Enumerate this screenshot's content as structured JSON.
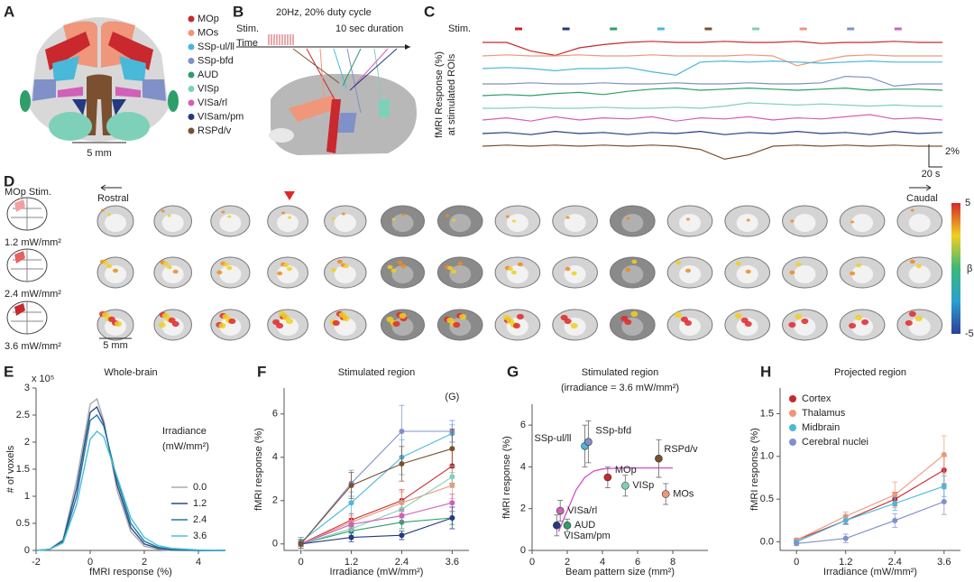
{
  "panel_labels": [
    "A",
    "B",
    "C",
    "D",
    "E",
    "F",
    "G",
    "H"
  ],
  "panel_a": {
    "legend": [
      {
        "name": "MOp",
        "color": "#c8282e"
      },
      {
        "name": "MOs",
        "color": "#f0967a"
      },
      {
        "name": "SSp-ul/ll",
        "color": "#4ab8d8"
      },
      {
        "name": "SSp-bfd",
        "color": "#8090c8"
      },
      {
        "name": "AUD",
        "color": "#2e9e6a"
      },
      {
        "name": "VISp",
        "color": "#7fd0b8"
      },
      {
        "name": "VISa/rl",
        "color": "#d060b8"
      },
      {
        "name": "VISam/pm",
        "color": "#233a80"
      },
      {
        "name": "RSPd/v",
        "color": "#7a5030"
      }
    ],
    "scale": "5 mm"
  },
  "panel_b": {
    "protocol": "20Hz, 20% duty cycle",
    "stim": "Stim.",
    "duration": "10 sec duration",
    "time": "Time"
  },
  "panel_c": {
    "stim": "Stim.",
    "ylabel": [
      "fMRI Response (%)",
      "at stimulated ROIs"
    ],
    "scale_y": "2%",
    "scale_x": "20 s",
    "stim_colors": [
      "#c8282e",
      "#233a80",
      "#2e9e6a",
      "#4ab8d8",
      "#7a5030",
      "#7fd0b8",
      "#f0967a",
      "#8090c8",
      "#d060b8"
    ],
    "series": [
      {
        "color": "#c8282e",
        "values": [
          0,
          0,
          -0.8,
          -1.2,
          -0.5,
          -0.2,
          0,
          0.1,
          0,
          0,
          0.1,
          0,
          0,
          0.1,
          -0.1,
          0,
          0,
          0.1,
          0,
          0
        ]
      },
      {
        "color": "#f0967a",
        "values": [
          0,
          0.1,
          0,
          0,
          0.1,
          0,
          0,
          0.1,
          0,
          0,
          0,
          0.1,
          0,
          -0.9,
          -0.4,
          0,
          0.1,
          0,
          0,
          0
        ]
      },
      {
        "color": "#4ab8d8",
        "values": [
          0,
          0.1,
          0,
          -0.2,
          0,
          0,
          0.1,
          -0.3,
          -0.6,
          0.6,
          0.7,
          0.6,
          0.7,
          0.6,
          0.5,
          0.6,
          0.7,
          0.6,
          0.6,
          0.6
        ]
      },
      {
        "color": "#8090c8",
        "values": [
          0,
          0,
          0.1,
          0,
          0,
          0.1,
          0,
          0,
          0.1,
          0,
          0,
          0.1,
          0,
          0,
          0.1,
          0.7,
          0.6,
          -0.2,
          0,
          0
        ]
      },
      {
        "color": "#2e9e6a",
        "values": [
          0,
          0.1,
          0,
          0.2,
          0.3,
          0.1,
          0.4,
          0.6,
          0.7,
          0.5,
          0.6,
          0.7,
          0.6,
          0.5,
          0.6,
          0.7,
          0.5,
          0.6,
          0.6,
          0.5
        ]
      },
      {
        "color": "#7fd0b8",
        "values": [
          0,
          0,
          0.1,
          0,
          0,
          0.1,
          0,
          0,
          0.1,
          0,
          0.2,
          0.5,
          0.4,
          0.3,
          0.4,
          0.3,
          0.2,
          0.3,
          0.2,
          0.2
        ]
      },
      {
        "color": "#d060b8",
        "values": [
          0,
          0.2,
          -0.1,
          0.3,
          0,
          0.2,
          0.1,
          0.3,
          -0.1,
          0.2,
          0.1,
          0.3,
          0,
          0.2,
          0.1,
          0.3,
          0.5,
          0.1,
          0.2,
          0
        ]
      },
      {
        "color": "#233a80",
        "values": [
          0,
          0.1,
          -0.1,
          0.2,
          0,
          0.1,
          -0.1,
          0.1,
          0,
          0.2,
          -0.1,
          0.1,
          0,
          0.2,
          0,
          0.1,
          -0.1,
          0.2,
          0,
          0.1
        ]
      },
      {
        "color": "#7a5030",
        "values": [
          0,
          0.1,
          0,
          0.1,
          0,
          0.1,
          0,
          0.1,
          0,
          -0.3,
          -1.2,
          -0.8,
          0,
          0.1,
          0,
          0.1,
          0,
          0.1,
          0,
          0
        ]
      }
    ]
  },
  "panel_d": {
    "title": "MOp Stim.",
    "rostral": "Rostral",
    "caudal": "Caudal",
    "rows": [
      "1.2 mW/mm²",
      "2.4 mW/mm²",
      "3.6 mW/mm²"
    ],
    "scale": "5 mm",
    "colorbar": {
      "label": "β",
      "lim": [
        -5,
        5
      ],
      "ticks": [
        5,
        -5
      ]
    }
  },
  "chart_data": [
    {
      "type": "line",
      "title": "Whole-brain",
      "xlabel": "fMRI response (%)",
      "ylabel": "# of voxels",
      "y_multiplier": "x 10⁵",
      "legend_title": [
        "Irradiance",
        "(mW/mm²)"
      ],
      "legend": "right",
      "xlim": [
        -2,
        5
      ],
      "xticks": [
        -2,
        0,
        2,
        4
      ],
      "ylim": [
        0,
        3
      ],
      "yticks": [
        0,
        0.5,
        1,
        1.5,
        2,
        2.5,
        3
      ],
      "x": [
        -2,
        -1.5,
        -1,
        -0.5,
        0,
        0.25,
        0.5,
        1,
        1.5,
        2,
        2.5,
        3,
        4,
        5
      ],
      "series": [
        {
          "name": "0.0",
          "color": "#aaaaaa",
          "values": [
            0,
            0.02,
            0.2,
            1.3,
            2.7,
            2.8,
            2.4,
            1.1,
            0.35,
            0.08,
            0.02,
            0,
            0,
            0
          ]
        },
        {
          "name": "1.2",
          "color": "#2b4a8c",
          "values": [
            0,
            0.02,
            0.18,
            1.15,
            2.55,
            2.65,
            2.35,
            1.2,
            0.42,
            0.12,
            0.04,
            0.01,
            0,
            0
          ]
        },
        {
          "name": "2.4",
          "color": "#1f78a0",
          "values": [
            0,
            0.02,
            0.16,
            1.0,
            2.4,
            2.5,
            2.3,
            1.3,
            0.5,
            0.17,
            0.06,
            0.02,
            0,
            0
          ]
        },
        {
          "name": "3.6",
          "color": "#4ac0d8",
          "values": [
            0,
            0.02,
            0.14,
            0.85,
            2.05,
            2.2,
            2.1,
            1.35,
            0.6,
            0.24,
            0.09,
            0.04,
            0.01,
            0
          ]
        }
      ]
    },
    {
      "type": "line",
      "title": "Stimulated region",
      "xlabel": "Irradiance (mW/mm²)",
      "ylabel": "fMRI response (%)",
      "annotation": "(G)",
      "markers": true,
      "xlim": [
        -0.4,
        4.0
      ],
      "xticks": [
        0,
        1.2,
        2.4,
        3.6
      ],
      "ylim": [
        -0.3,
        7.2
      ],
      "yticks": [
        0,
        2,
        4,
        6
      ],
      "x": [
        0,
        1.2,
        2.4,
        3.6
      ],
      "series": [
        {
          "color": "#c8282e",
          "values": [
            0,
            1.1,
            2.0,
            3.6
          ],
          "errors": [
            0.2,
            0.3,
            0.5,
            0.8
          ]
        },
        {
          "color": "#f0967a",
          "values": [
            0,
            1.0,
            1.9,
            2.7
          ],
          "errors": [
            0.2,
            0.3,
            0.5,
            0.6
          ]
        },
        {
          "color": "#4ab8d8",
          "values": [
            0.1,
            1.9,
            4.0,
            5.1
          ],
          "errors": [
            0.2,
            0.5,
            0.8,
            0.4
          ]
        },
        {
          "color": "#8090c8",
          "values": [
            0,
            2.8,
            5.2,
            5.2
          ],
          "errors": [
            0.3,
            0.6,
            1.2,
            0.5
          ]
        },
        {
          "color": "#2e9e6a",
          "values": [
            0,
            0.6,
            1.0,
            1.2
          ],
          "errors": [
            0.1,
            0.2,
            0.3,
            0.3
          ]
        },
        {
          "color": "#7fd0b8",
          "values": [
            0,
            0.7,
            1.6,
            3.1
          ],
          "errors": [
            0.1,
            0.3,
            0.4,
            0.5
          ]
        },
        {
          "color": "#d060b8",
          "values": [
            0,
            0.9,
            1.3,
            1.9
          ],
          "errors": [
            0.1,
            0.2,
            0.3,
            0.4
          ]
        },
        {
          "color": "#233a80",
          "values": [
            0,
            0.3,
            0.4,
            1.2
          ],
          "errors": [
            0.1,
            0.2,
            0.2,
            0.5
          ]
        },
        {
          "color": "#7a5030",
          "values": [
            0,
            2.7,
            3.7,
            4.4
          ],
          "errors": [
            0.2,
            0.6,
            0.8,
            0.9
          ]
        }
      ]
    },
    {
      "type": "scatter",
      "title": "Stimulated region",
      "subtitle": "(irradiance = 3.6 mW/mm²)",
      "xlabel": "Beam pattern size (mm²)",
      "ylabel": "fMRI response (%)",
      "xlim": [
        0,
        10
      ],
      "xticks": [
        0,
        2,
        4,
        6,
        8
      ],
      "ylim": [
        0,
        7
      ],
      "yticks": [
        0,
        2,
        4,
        6
      ],
      "labels": [
        "SSp-ul/ll",
        "SSp-bfd",
        "MOp",
        "VISp",
        "RSPd/v",
        "MOs",
        "VISa/rl",
        "AUD",
        "VISam/pm"
      ],
      "colors": [
        "#4ab8d8",
        "#8090c8",
        "#c8282e",
        "#7fd0b8",
        "#7a5030",
        "#f0967a",
        "#d060b8",
        "#2e9e6a",
        "#233a80"
      ],
      "x": [
        3.0,
        3.2,
        4.3,
        5.3,
        7.2,
        7.6,
        1.6,
        2.0,
        1.4
      ],
      "values": [
        5.0,
        5.2,
        3.5,
        3.1,
        4.4,
        2.7,
        1.9,
        1.2,
        1.2
      ],
      "errors": [
        1.0,
        1.0,
        0.5,
        0.5,
        0.9,
        0.5,
        0.5,
        0.3,
        0.5
      ],
      "fit": {
        "color": "#d050c8",
        "x": [
          1.5,
          2,
          2.5,
          3,
          3.5,
          4,
          5,
          6,
          7,
          8
        ],
        "values": [
          0.9,
          1.9,
          2.9,
          3.5,
          3.8,
          3.9,
          3.95,
          3.95,
          3.95,
          3.95
        ]
      }
    },
    {
      "type": "line",
      "title": "Projected region",
      "xlabel": "Irradiance (mW/mm²)",
      "ylabel": "fMRI response (%)",
      "legend": "upper left",
      "markers": true,
      "xlim": [
        -0.4,
        4.0
      ],
      "xticks": [
        0,
        1.2,
        2.4,
        3.6
      ],
      "ylim": [
        -0.1,
        1.8
      ],
      "yticks": [
        {
          "value": 0,
          "label": "0.0"
        },
        0.5,
        {
          "value": 1,
          "label": "1.0"
        },
        1.5
      ],
      "x": [
        0,
        1.2,
        2.4,
        3.6
      ],
      "series": [
        {
          "name": "Cortex",
          "color": "#c8282e",
          "values": [
            0.02,
            0.25,
            0.5,
            0.84
          ],
          "errors": [
            0.02,
            0.04,
            0.08,
            0.16
          ]
        },
        {
          "name": "Thalamus",
          "color": "#f0967a",
          "values": [
            0.02,
            0.3,
            0.55,
            1.02
          ],
          "errors": [
            0.02,
            0.05,
            0.15,
            0.22
          ]
        },
        {
          "name": "Midbrain",
          "color": "#4ab8d8",
          "values": [
            0,
            0.25,
            0.45,
            0.65
          ],
          "errors": [
            0.02,
            0.05,
            0.08,
            0.12
          ]
        },
        {
          "name": "Cerebral nuclei",
          "color": "#8090c8",
          "values": [
            -0.02,
            0.04,
            0.25,
            0.47
          ],
          "errors": [
            0.02,
            0.05,
            0.08,
            0.15
          ]
        }
      ]
    }
  ]
}
